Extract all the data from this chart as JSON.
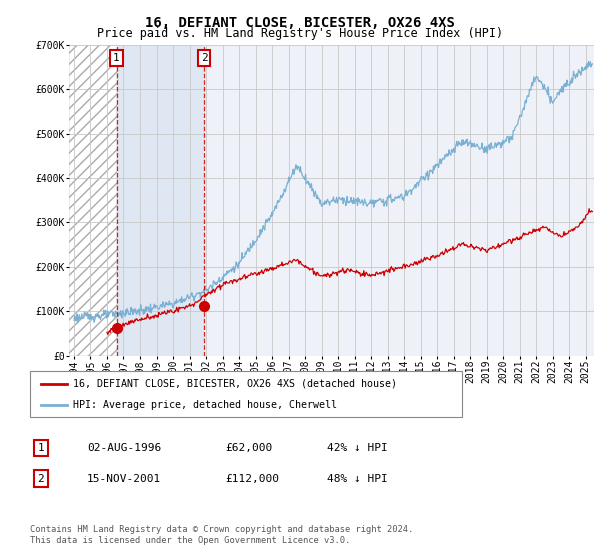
{
  "title": "16, DEFIANT CLOSE, BICESTER, OX26 4XS",
  "subtitle": "Price paid vs. HM Land Registry's House Price Index (HPI)",
  "ylim": [
    0,
    700000
  ],
  "yticks": [
    0,
    100000,
    200000,
    300000,
    400000,
    500000,
    600000,
    700000
  ],
  "ytick_labels": [
    "£0",
    "£100K",
    "£200K",
    "£300K",
    "£400K",
    "£500K",
    "£600K",
    "£700K"
  ],
  "xlim_start": 1993.7,
  "xlim_end": 2025.5,
  "hatch_end": 1996.58,
  "vline1_x": 1996.58,
  "vline2_x": 2001.88,
  "point1_x": 1996.58,
  "point1_y": 62000,
  "point2_x": 2001.88,
  "point2_y": 112000,
  "label1": "1",
  "label2": "2",
  "red_color": "#cc0000",
  "blue_color": "#7ab0d4",
  "hatch_color": "#cccccc",
  "background_color": "#eef2f8",
  "shade_color": "#dde6f2",
  "legend_line1": "16, DEFIANT CLOSE, BICESTER, OX26 4XS (detached house)",
  "legend_line2": "HPI: Average price, detached house, Cherwell",
  "table_row1": [
    "1",
    "02-AUG-1996",
    "£62,000",
    "42% ↓ HPI"
  ],
  "table_row2": [
    "2",
    "15-NOV-2001",
    "£112,000",
    "48% ↓ HPI"
  ],
  "footer": "Contains HM Land Registry data © Crown copyright and database right 2024.\nThis data is licensed under the Open Government Licence v3.0.",
  "title_fontsize": 10,
  "subtitle_fontsize": 8.5,
  "tick_fontsize": 7
}
